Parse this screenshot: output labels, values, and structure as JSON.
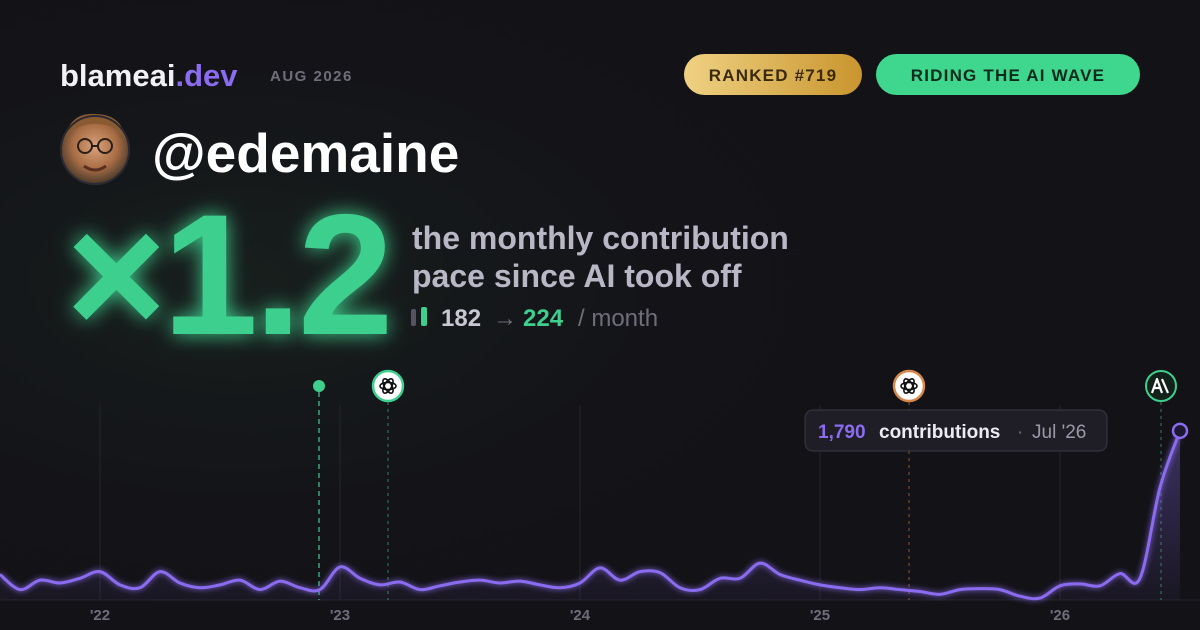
{
  "header": {
    "brand": "blameai",
    "brand_suffix": ".dev",
    "date": "AUG 2026",
    "badges": [
      "RANKED #719",
      "RIDING THE AI WAVE"
    ]
  },
  "profile": {
    "handle": "@edemaine"
  },
  "headline": {
    "multiplier": "×1.2",
    "description": [
      "the monthly contribution",
      "pace since AI took off"
    ],
    "before": "182",
    "arrow": "→",
    "after": "224",
    "unit": "/ month"
  },
  "chart_data": {
    "type": "line",
    "categories": [
      null,
      null,
      null,
      null,
      null,
      "'22",
      null,
      null,
      null,
      null,
      null,
      null,
      null,
      null,
      null,
      null,
      null,
      "'23",
      null,
      null,
      null,
      null,
      null,
      null,
      null,
      null,
      null,
      null,
      null,
      "'24",
      null,
      null,
      null,
      null,
      null,
      null,
      null,
      null,
      null,
      null,
      null,
      "'25",
      null,
      null,
      null,
      null,
      null,
      null,
      null,
      null,
      null,
      null,
      null,
      "'26",
      null,
      null,
      null,
      null,
      null,
      null
    ],
    "series": [
      {
        "name": "contributions",
        "color": "#8b6cf0",
        "values": [
          270,
          110,
          210,
          180,
          230,
          300,
          160,
          130,
          300,
          180,
          130,
          160,
          210,
          110,
          200,
          130,
          110,
          350,
          230,
          160,
          190,
          110,
          150,
          190,
          210,
          180,
          200,
          160,
          130,
          180,
          340,
          210,
          300,
          290,
          130,
          110,
          230,
          230,
          390,
          270,
          210,
          160,
          130,
          110,
          130,
          110,
          90,
          60,
          110,
          120,
          110,
          40,
          20,
          150,
          170,
          150,
          280,
          230,
          1190,
          1790
        ]
      }
    ],
    "ylim": [
      0,
      2000
    ],
    "tooltip": {
      "value_label": "1,790",
      "unit": "contributions",
      "separator": "·",
      "date": "Jul '26"
    }
  }
}
